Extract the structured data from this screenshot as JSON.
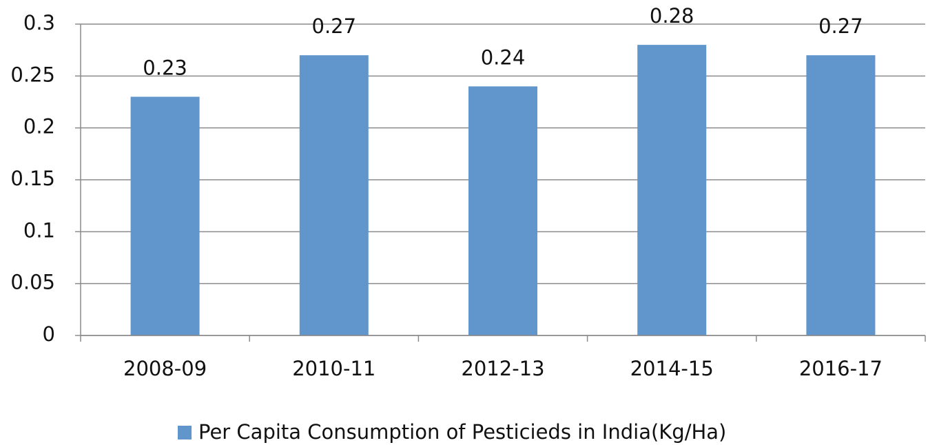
{
  "chart_data": {
    "type": "bar",
    "categories": [
      "2008-09",
      "2010-11",
      "2012-13",
      "2014-15",
      "2016-17"
    ],
    "series": [
      {
        "name": "Per Capita Consumption of Pesticieds in India(Kg/Ha)",
        "color": "#6096cc",
        "values": [
          0.23,
          0.27,
          0.24,
          0.28,
          0.27
        ]
      }
    ],
    "ylim": [
      0,
      0.3
    ],
    "yticks": [
      0,
      0.05,
      0.1,
      0.15,
      0.2,
      0.25,
      0.3
    ],
    "grid": true,
    "legend": "bottom",
    "data_labels": true
  }
}
